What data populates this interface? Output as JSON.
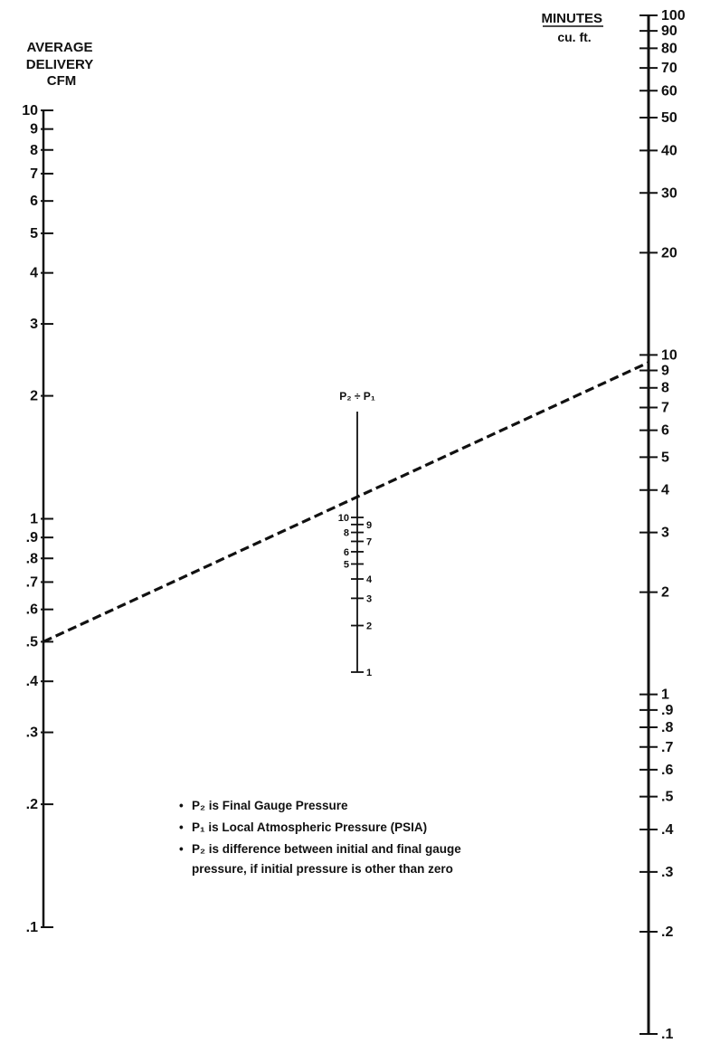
{
  "chart_data": {
    "type": "nomograph",
    "left_axis": {
      "title_lines": [
        "AVERAGE",
        "DELIVERY",
        "CFM"
      ],
      "ticks": [
        10,
        9,
        8,
        7,
        6,
        5,
        4,
        3,
        2,
        1,
        0.9,
        0.8,
        0.7,
        0.6,
        0.5,
        0.4,
        0.3,
        0.2,
        0.1
      ],
      "tick_labels": [
        "10",
        "9",
        "8",
        "7",
        "6",
        "5",
        "4",
        "3",
        "2",
        "1",
        ".9",
        ".8",
        ".7",
        ".6",
        ".5",
        ".4",
        ".3",
        ".2",
        ".1"
      ],
      "range": [
        0.1,
        10
      ],
      "scale": "log"
    },
    "right_axis": {
      "title": "MINUTES",
      "subtitle": "cu. ft.",
      "ticks": [
        100,
        90,
        80,
        70,
        60,
        50,
        40,
        30,
        20,
        10,
        9,
        8,
        7,
        6,
        5,
        4,
        3,
        2,
        1,
        0.9,
        0.8,
        0.7,
        0.6,
        0.5,
        0.4,
        0.3,
        0.2,
        0.1
      ],
      "tick_labels": [
        "100",
        "90",
        "80",
        "70",
        "60",
        "50",
        "40",
        "30",
        "20",
        "10",
        "9",
        "8",
        "7",
        "6",
        "5",
        "4",
        "3",
        "2",
        "1",
        ".9",
        ".8",
        ".7",
        ".6",
        ".5",
        ".4",
        ".3",
        ".2",
        ".1"
      ],
      "range": [
        0.1,
        100
      ],
      "scale": "log"
    },
    "middle_axis": {
      "title": "P₂ ÷ P₁",
      "ticks": [
        10,
        9,
        8,
        7,
        6,
        5,
        4,
        3,
        2,
        1
      ],
      "left_labels": [
        "10",
        "8",
        "6",
        "5"
      ],
      "left_label_values": [
        10,
        8,
        6,
        5
      ],
      "right_labels": [
        "9",
        "7",
        "4",
        "3",
        "2",
        "1"
      ],
      "right_label_values": [
        9,
        7,
        4,
        3,
        2,
        1
      ]
    },
    "example_line": {
      "style": "dashed",
      "from_left_value": 0.5,
      "to_right_value": 9.5
    },
    "notes": [
      "P₂ is Final  Gauge Pressure",
      "P₁ is Local Atmospheric Pressure (PSIA)",
      "P₂ is difference between initial and final gauge",
      "pressure, if initial pressure is other than zero"
    ]
  }
}
